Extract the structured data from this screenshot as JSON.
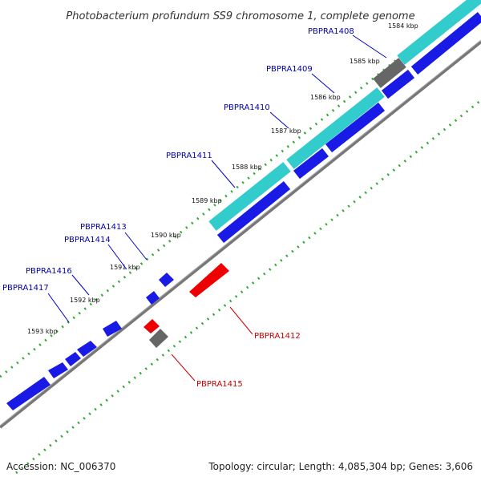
{
  "title": "Photobacterium profundum SS9 chromosome 1, complete genome",
  "footer": {
    "accession": "Accession: NC_006370",
    "stats": "Topology: circular; Length: 4,085,304 bp; Genes: 3,606"
  },
  "colors": {
    "forward_gene": "#0000e0",
    "reverse_gene": "#ee0000",
    "cds_region": "#33dddd",
    "other_feature": "#666666",
    "backbone": "#888888",
    "dotted_ring_forward": "#33aa33",
    "dotted_ring_reverse": "#33aa33",
    "tick_major": "#007700",
    "label_forward": "#0000aa",
    "label_reverse": "#cc0000"
  },
  "ticks": [
    {
      "label": "1584 kbp"
    },
    {
      "label": "1585 kbp"
    },
    {
      "label": "1586 kbp"
    },
    {
      "label": "1587 kbp"
    },
    {
      "label": "1588 kbp"
    },
    {
      "label": "1589 kbp"
    },
    {
      "label": "1590 kbp"
    },
    {
      "label": "1591 kbp"
    },
    {
      "label": "1592 kbp"
    },
    {
      "label": "1593 kbp"
    }
  ],
  "gene_labels": [
    {
      "name": "PBPRA1408",
      "strand": "forward"
    },
    {
      "name": "PBPRA1409",
      "strand": "forward"
    },
    {
      "name": "PBPRA1410",
      "strand": "forward"
    },
    {
      "name": "PBPRA1411",
      "strand": "forward"
    },
    {
      "name": "PBPRA1412",
      "strand": "reverse"
    },
    {
      "name": "PBPRA1413",
      "strand": "forward"
    },
    {
      "name": "PBPRA1414",
      "strand": "forward"
    },
    {
      "name": "PBPRA1415",
      "strand": "reverse"
    },
    {
      "name": "PBPRA1416",
      "strand": "forward"
    },
    {
      "name": "PBPRA1417",
      "strand": "forward"
    }
  ]
}
